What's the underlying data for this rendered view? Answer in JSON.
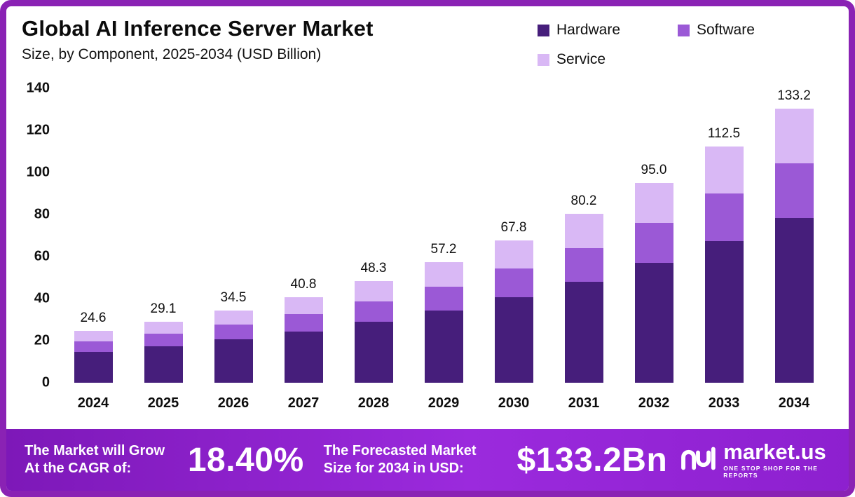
{
  "frame": {
    "border_color": "#8a22b4",
    "background": "#ffffff"
  },
  "header": {
    "title": "Global AI Inference Server Market",
    "subtitle": "Size, by Component, 2025-2034 (USD Billion)"
  },
  "legend": [
    {
      "label": "Hardware",
      "color": "#461e7b"
    },
    {
      "label": "Software",
      "color": "#9b59d6"
    },
    {
      "label": "Service",
      "color": "#d9b8f5"
    }
  ],
  "chart_data": {
    "type": "bar",
    "stacked": true,
    "title": "Global AI Inference Server Market",
    "subtitle": "Size, by Component, 2025-2034 (USD Billion)",
    "xlabel": "",
    "ylabel": "USD Billion",
    "grid": false,
    "legend_position": "top-right",
    "ylim": [
      0,
      140
    ],
    "yticks": [
      0,
      20,
      40,
      60,
      80,
      100,
      120,
      140
    ],
    "categories": [
      "2024",
      "2025",
      "2026",
      "2027",
      "2028",
      "2029",
      "2030",
      "2031",
      "2032",
      "2033",
      "2034"
    ],
    "series": [
      {
        "name": "Hardware",
        "color": "#461e7b",
        "values": [
          14.8,
          17.5,
          20.7,
          24.5,
          29.0,
          34.3,
          40.7,
          48.1,
          57.0,
          67.5,
          79.9
        ]
      },
      {
        "name": "Software",
        "color": "#9b59d6",
        "values": [
          4.9,
          5.8,
          6.9,
          8.2,
          9.7,
          11.4,
          13.6,
          16.0,
          19.0,
          22.5,
          26.7
        ]
      },
      {
        "name": "Service",
        "color": "#d9b8f5",
        "values": [
          4.9,
          5.8,
          6.9,
          8.1,
          9.6,
          11.5,
          13.5,
          16.1,
          19.0,
          22.5,
          26.6
        ]
      }
    ],
    "totals": [
      24.6,
      29.1,
      34.5,
      40.8,
      48.3,
      57.2,
      67.8,
      80.2,
      95.0,
      112.5,
      133.2
    ],
    "total_labels": [
      "24.6",
      "29.1",
      "34.5",
      "40.8",
      "48.3",
      "57.2",
      "67.8",
      "80.2",
      "95.0",
      "112.5",
      "133.2"
    ]
  },
  "footer": {
    "cagr_label": "The Market will Grow At the CAGR of:",
    "cagr_value": "18.40%",
    "forecast_label": "The Forecasted Market Size for 2034 in USD:",
    "forecast_value": "$133.2Bn",
    "brand": "market.us",
    "brand_tagline": "ONE STOP SHOP FOR THE REPORTS",
    "banner_color": "#8d20cf"
  }
}
